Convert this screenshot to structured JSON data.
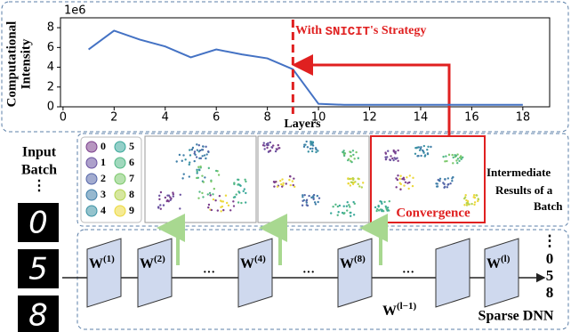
{
  "chart_data": {
    "type": "line",
    "ylabel_lines": [
      "Computational",
      "Intensity"
    ],
    "xlabel": "Layers",
    "offset_label": "1e6",
    "x": [
      1,
      2,
      3,
      4,
      5,
      6,
      7,
      8,
      9,
      10,
      11,
      12,
      13,
      14,
      15,
      16,
      17,
      18
    ],
    "series": [
      {
        "color": "#4472c4",
        "values": [
          5.8,
          7.7,
          6.8,
          6.1,
          5.0,
          5.8,
          5.3,
          4.9,
          3.8,
          0.3,
          0.2,
          0.2,
          0.2,
          0.2,
          0.2,
          0.2,
          0.2,
          0.2
        ]
      }
    ],
    "xlim": [
      -0.1,
      19.05
    ],
    "ylim": [
      0,
      9
    ],
    "xticks": [
      0,
      2,
      4,
      6,
      8,
      10,
      12,
      14,
      16,
      18
    ],
    "yticks": [
      0,
      2,
      4,
      6,
      8
    ],
    "marker_x": 9,
    "annotation": [
      "With ",
      "SNICIT",
      "'s Strategy"
    ],
    "annotation_color": "#e02020"
  },
  "input": {
    "title_lines": [
      "Input",
      "Batch"
    ],
    "digits": [
      "0",
      "5",
      "8"
    ]
  },
  "vdots": "⋮",
  "hdots": "···",
  "legend": {
    "labels": [
      "0",
      "1",
      "2",
      "3",
      "4",
      "5",
      "6",
      "7",
      "8",
      "9"
    ],
    "colors": [
      "#7b3f8c",
      "#6a52a0",
      "#5566a8",
      "#3f7ea8",
      "#3c92a4",
      "#3aa89a",
      "#52b886",
      "#7cc86b",
      "#b5d450",
      "#ecd83c"
    ]
  },
  "convergence": "Convergence",
  "intermediate_lines": [
    "Intermediate",
    "Results of a",
    "Batch"
  ],
  "layers": [
    {
      "base": "W",
      "sup": "(1)"
    },
    {
      "base": "W",
      "sup": "(2)"
    },
    {
      "base": "W",
      "sup": "(4)"
    },
    {
      "base": "W",
      "sup": "(8)"
    },
    {
      "base": "W",
      "sup": "(l−1)"
    },
    {
      "base": "W",
      "sup": "(l)"
    }
  ],
  "outputs": [
    "0",
    "5",
    "8"
  ],
  "network_label": "Sparse DNN"
}
